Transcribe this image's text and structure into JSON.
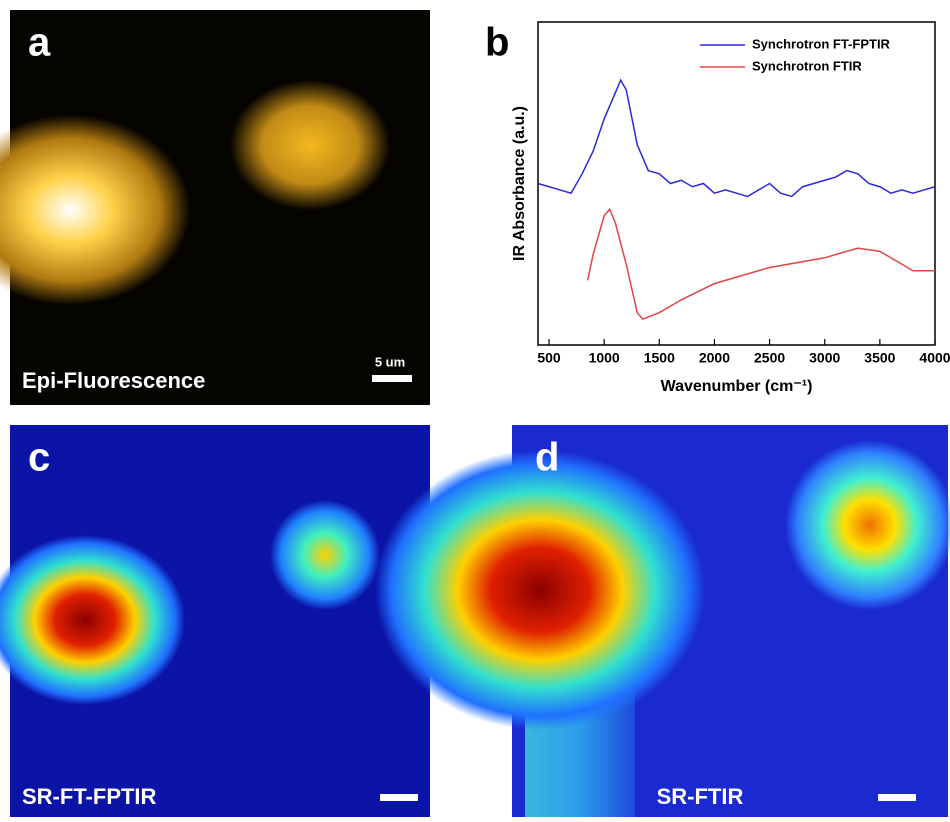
{
  "panels": [
    {
      "letter": "a",
      "caption": "Epi-Fluorescence",
      "scale_label": "5 um"
    },
    {
      "letter": "b"
    },
    {
      "letter": "c",
      "caption": "SR-FT-FPTIR"
    },
    {
      "letter": "d",
      "caption": "SR-FTIR"
    }
  ],
  "chart_data": {
    "type": "line",
    "xlabel": "Wavenumber (cm⁻¹)",
    "ylabel": "IR Absorbance (a.u.)",
    "xlim": [
      400,
      4000
    ],
    "ylim": [
      0,
      1
    ],
    "xticks": [
      500,
      1000,
      1500,
      2000,
      2500,
      3000,
      3500,
      4000
    ],
    "legend": "upper right",
    "series": [
      {
        "name": "Synchrotron FT-FPTIR",
        "color": "#2a2ad8",
        "x": [
          400,
          500,
          600,
          700,
          800,
          900,
          1000,
          1100,
          1150,
          1200,
          1300,
          1400,
          1500,
          1600,
          1700,
          1800,
          1900,
          2000,
          2100,
          2200,
          2300,
          2400,
          2500,
          2600,
          2700,
          2800,
          2900,
          3000,
          3100,
          3200,
          3300,
          3400,
          3500,
          3600,
          3700,
          3800,
          3900,
          4000
        ],
        "values": [
          0.5,
          0.49,
          0.48,
          0.47,
          0.53,
          0.6,
          0.7,
          0.78,
          0.82,
          0.79,
          0.62,
          0.54,
          0.53,
          0.5,
          0.51,
          0.49,
          0.5,
          0.47,
          0.48,
          0.47,
          0.46,
          0.48,
          0.5,
          0.47,
          0.46,
          0.49,
          0.5,
          0.51,
          0.52,
          0.54,
          0.53,
          0.5,
          0.49,
          0.47,
          0.48,
          0.47,
          0.48,
          0.49
        ]
      },
      {
        "name": "Synchrotron FTIR",
        "color": "#e04545",
        "x": [
          850,
          900,
          1000,
          1050,
          1100,
          1200,
          1300,
          1350,
          1500,
          1700,
          2000,
          2500,
          3000,
          3300,
          3500,
          3700,
          3800,
          4000
        ],
        "values": [
          0.2,
          0.28,
          0.4,
          0.42,
          0.38,
          0.25,
          0.1,
          0.08,
          0.1,
          0.14,
          0.19,
          0.24,
          0.27,
          0.3,
          0.29,
          0.25,
          0.23,
          0.23
        ]
      }
    ]
  }
}
